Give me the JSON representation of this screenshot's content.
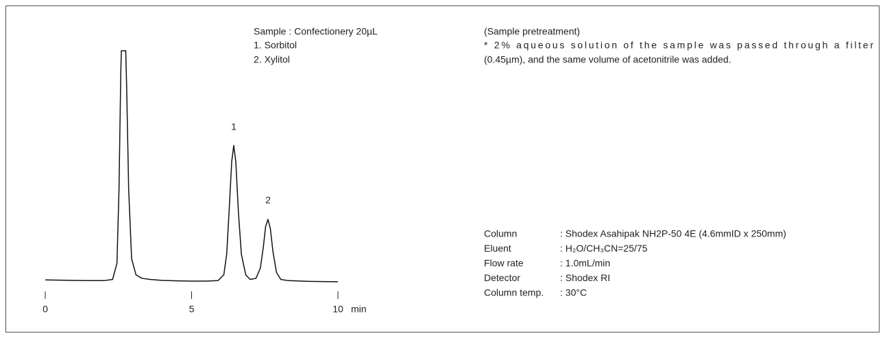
{
  "chart_data": {
    "type": "line",
    "x_label": "min",
    "xlim": [
      0,
      10
    ],
    "xticks": [
      0,
      5,
      10
    ],
    "ylim": [
      0,
      100
    ],
    "color": "#111111",
    "x": [
      0,
      0.5,
      1,
      1.5,
      2,
      2.3,
      2.45,
      2.52,
      2.58,
      2.6,
      2.75,
      2.78,
      2.85,
      2.95,
      3.1,
      3.3,
      3.6,
      4,
      4.5,
      5,
      5.5,
      5.9,
      6.1,
      6.2,
      6.3,
      6.37,
      6.44,
      6.51,
      6.6,
      6.7,
      6.85,
      7.0,
      7.2,
      7.35,
      7.45,
      7.53,
      7.61,
      7.69,
      7.78,
      7.9,
      8.05,
      8.3,
      9,
      10
    ],
    "values": [
      0.8,
      0.7,
      0.6,
      0.5,
      0.5,
      1,
      8,
      40,
      90,
      100,
      100,
      85,
      40,
      10,
      3,
      1.5,
      1,
      0.6,
      0.4,
      0.3,
      0.3,
      0.5,
      3,
      12,
      35,
      52,
      59,
      52,
      30,
      12,
      3,
      1,
      1.5,
      6,
      15,
      24,
      27,
      23,
      13,
      4,
      1,
      0.5,
      0.2,
      0
    ],
    "annotations": [
      "1",
      "2"
    ],
    "sample": [
      "Sample : Confectionery 20µL",
      "1. Sorbitol",
      "2. Xylitol"
    ],
    "pretreatment": [
      "(Sample pretreatment)",
      "* 2% aqueous solution of the sample was passed through a filter",
      "(0.45µm), and the same volume of acetonitrile was added."
    ],
    "conditions": [
      [
        "Column",
        ": Shodex Asahipak NH2P-50 4E (4.6mmID x 250mm)"
      ],
      [
        "Eluent",
        ": H₂O/CH₃CN=25/75"
      ],
      [
        "Flow rate",
        ": 1.0mL/min"
      ],
      [
        "Detector",
        ": Shodex RI"
      ],
      [
        "Column temp.",
        ": 30°C"
      ]
    ]
  }
}
